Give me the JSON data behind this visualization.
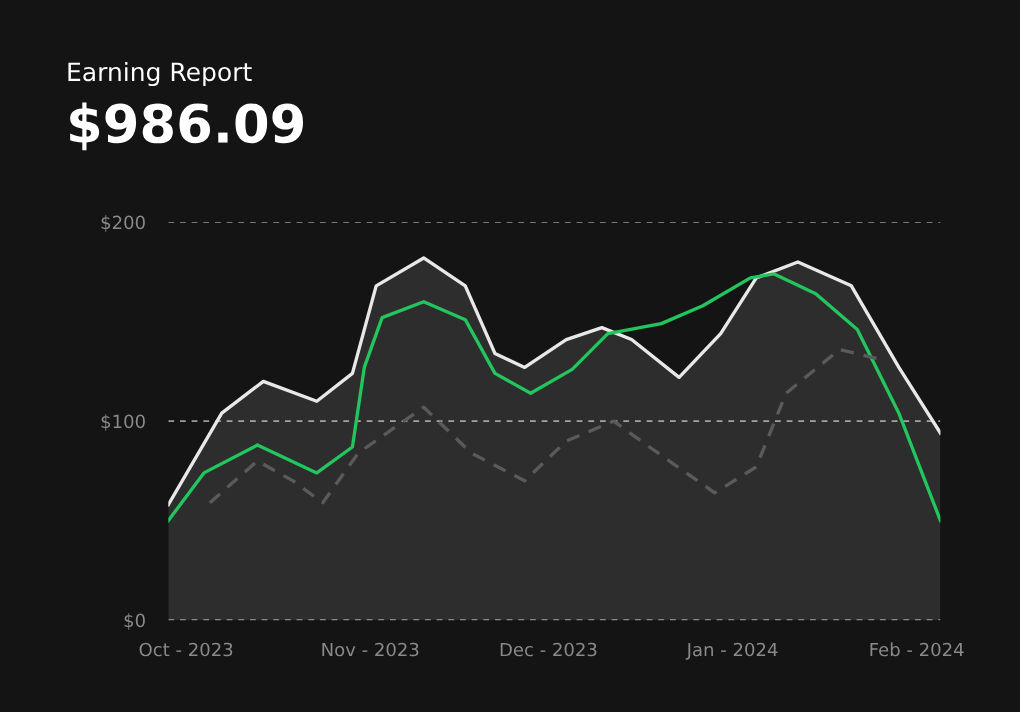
{
  "chart_data": {
    "type": "line",
    "title": "Earning Report",
    "subtitle": "$986.09",
    "xlim": [
      "2023-09-28",
      "2024-02-05"
    ],
    "xticks": [
      {
        "value": "2023-10-01",
        "label": "Oct - 2023"
      },
      {
        "value": "2023-11-01",
        "label": "Nov - 2023"
      },
      {
        "value": "2023-12-01",
        "label": "Dec - 2023"
      },
      {
        "value": "2024-01-01",
        "label": "Jan - 2024"
      },
      {
        "value": "2024-02-01",
        "label": "Feb - 2024"
      }
    ],
    "ylim": [
      0,
      200
    ],
    "yticks": [
      {
        "value": 0,
        "label": "$0"
      },
      {
        "value": 100,
        "label": "$100"
      },
      {
        "value": 200,
        "label": "$200"
      }
    ],
    "grid": "y",
    "marker": "none",
    "series": [
      {
        "type": "area",
        "color": "#e8e8e8",
        "x": [
          "2023-09-28",
          "2023-10-07",
          "2023-10-14",
          "2023-10-23",
          "2023-10-29",
          "2023-11-02",
          "2023-11-10",
          "2023-11-17",
          "2023-11-22",
          "2023-11-27",
          "2023-12-04",
          "2023-12-10",
          "2023-12-15",
          "2023-12-23",
          "2023-12-30",
          "2024-01-05",
          "2024-01-12",
          "2024-01-21",
          "2024-01-29",
          "2024-02-05"
        ],
        "values": [
          58,
          104,
          120,
          110,
          124,
          168,
          182,
          168,
          134,
          127,
          141,
          147,
          141,
          122,
          144,
          172,
          180,
          168,
          127,
          94
        ]
      },
      {
        "color": "#22c55e",
        "x": [
          "2023-09-28",
          "2023-10-04",
          "2023-10-13",
          "2023-10-23",
          "2023-10-29",
          "2023-10-31",
          "2023-11-03",
          "2023-11-10",
          "2023-11-17",
          "2023-11-22",
          "2023-11-28",
          "2023-12-05",
          "2023-12-11",
          "2023-12-20",
          "2023-12-27",
          "2024-01-04",
          "2024-01-08",
          "2024-01-15",
          "2024-01-22",
          "2024-01-29",
          "2024-02-05"
        ],
        "values": [
          50,
          74,
          88,
          74,
          87,
          127,
          152,
          160,
          151,
          124,
          114,
          126,
          144,
          149,
          158,
          172,
          174,
          164,
          146,
          104,
          50
        ]
      },
      {
        "color": "#5a5a5a",
        "line_style": "dashed",
        "x": [
          "2023-10-05",
          "2023-10-13",
          "2023-10-19",
          "2023-10-24",
          "2023-10-30",
          "2023-11-10",
          "2023-11-18",
          "2023-11-27",
          "2023-12-04",
          "2023-12-12",
          "2023-12-18",
          "2023-12-29",
          "2024-01-05",
          "2024-01-10",
          "2024-01-19",
          "2024-01-26"
        ],
        "values": [
          59,
          80,
          70,
          59,
          84,
          107,
          84,
          70,
          90,
          100,
          87,
          64,
          77,
          114,
          136,
          131
        ]
      }
    ]
  }
}
